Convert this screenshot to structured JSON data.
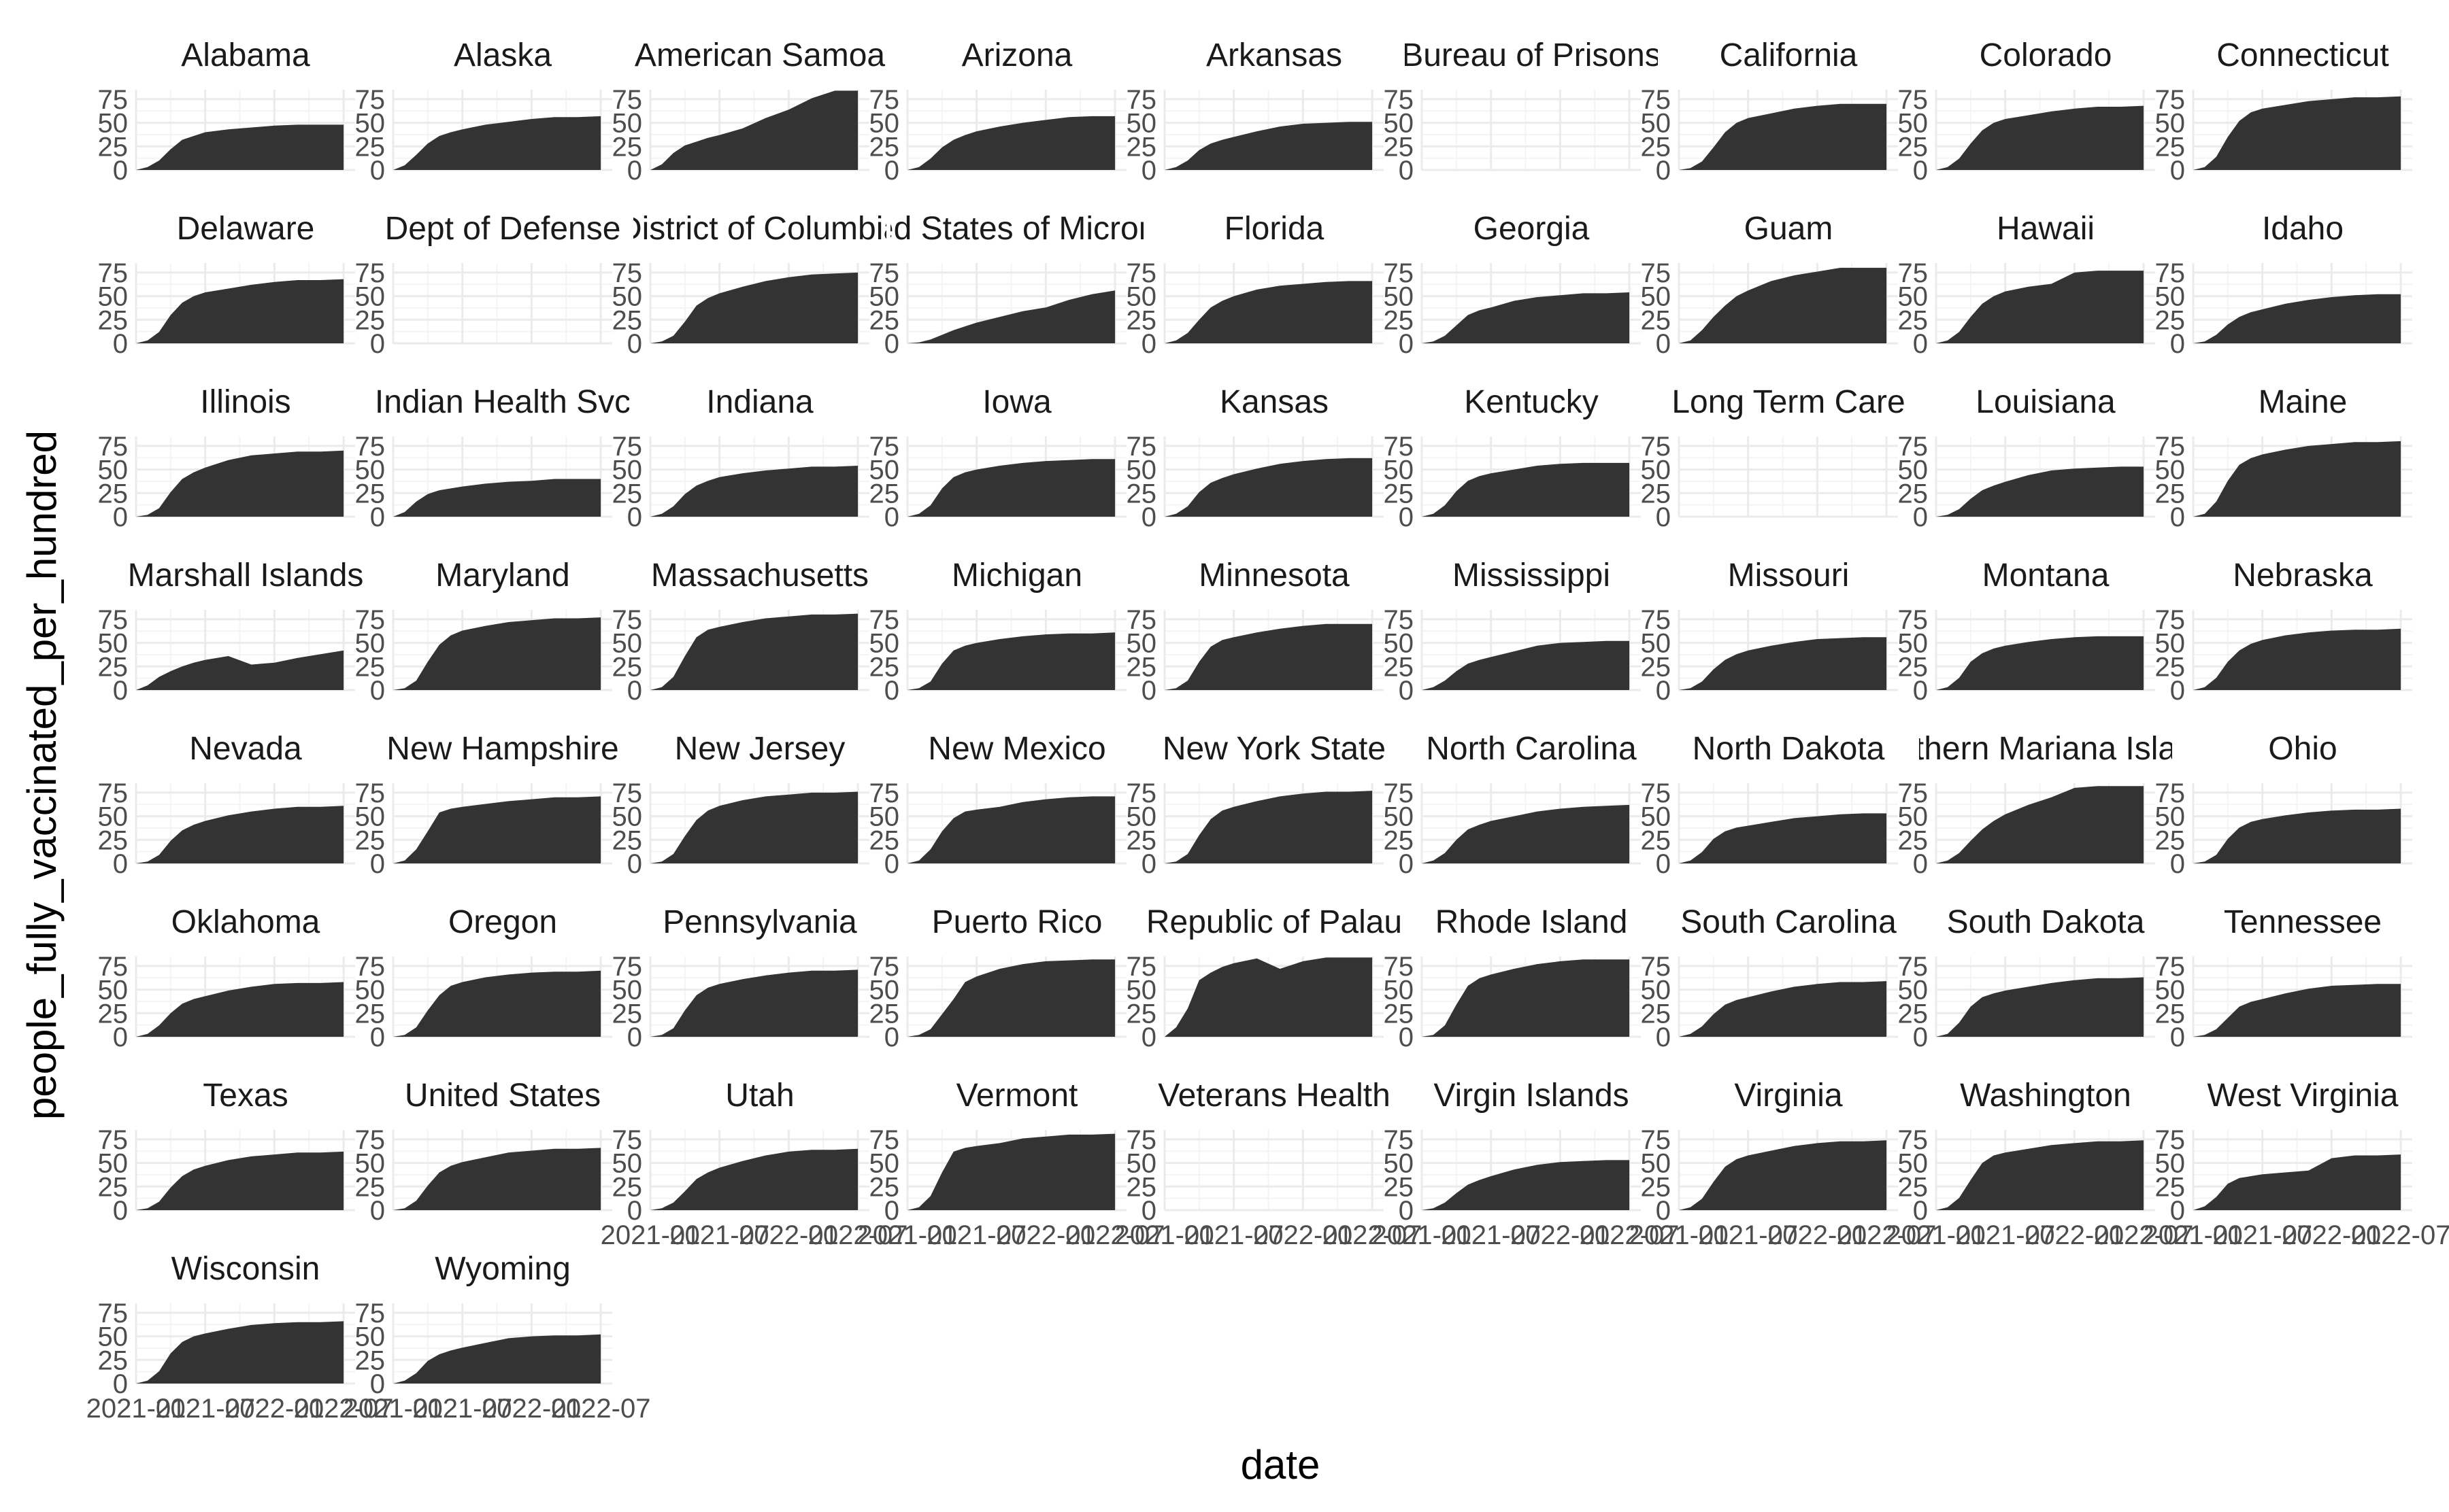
{
  "chart_data": {
    "type": "area",
    "facet_layout": "wrap 9 columns",
    "xlabel": "date",
    "ylabel": "people_fully_vaccinated_per_hundred",
    "ylim": [
      0,
      85
    ],
    "y_ticks": [
      0,
      25,
      50,
      75
    ],
    "x_range": [
      "2021-01",
      "2022-08"
    ],
    "x_ticks": [
      "2021-01",
      "2021-07",
      "2022-01",
      "2022-07"
    ],
    "grid": true,
    "fill_color": "#333333",
    "x_months": [
      0,
      1,
      2,
      3,
      4,
      5,
      6,
      8,
      10,
      12,
      14,
      16,
      18
    ],
    "facets": [
      {
        "name": "Alabama",
        "values": [
          0,
          3,
          10,
          22,
          32,
          36,
          40,
          43,
          45,
          47,
          48,
          48,
          48
        ]
      },
      {
        "name": "Alaska",
        "values": [
          0,
          5,
          16,
          28,
          36,
          40,
          43,
          48,
          51,
          54,
          56,
          56,
          57
        ]
      },
      {
        "name": "American Samoa",
        "values": [
          0,
          6,
          18,
          26,
          30,
          34,
          37,
          44,
          55,
          64,
          76,
          84,
          84
        ]
      },
      {
        "name": "Arizona",
        "values": [
          0,
          3,
          12,
          24,
          32,
          37,
          41,
          46,
          50,
          53,
          56,
          57,
          57
        ]
      },
      {
        "name": "Arkansas",
        "values": [
          0,
          3,
          10,
          21,
          28,
          32,
          35,
          41,
          46,
          49,
          50,
          51,
          51
        ]
      },
      {
        "name": "Bureau of Prisons",
        "values": []
      },
      {
        "name": "California",
        "values": [
          0,
          2,
          9,
          24,
          40,
          50,
          55,
          60,
          65,
          68,
          70,
          70,
          70
        ]
      },
      {
        "name": "Colorado",
        "values": [
          0,
          3,
          12,
          28,
          42,
          50,
          54,
          58,
          62,
          65,
          67,
          67,
          68
        ]
      },
      {
        "name": "Connecticut",
        "values": [
          0,
          3,
          14,
          35,
          52,
          61,
          65,
          69,
          73,
          75,
          77,
          77,
          78
        ]
      },
      {
        "name": "Delaware",
        "values": [
          0,
          3,
          12,
          30,
          43,
          50,
          54,
          58,
          62,
          65,
          67,
          67,
          68
        ]
      },
      {
        "name": "Dept of Defense",
        "values": []
      },
      {
        "name": "District of Columbia",
        "values": [
          0,
          2,
          8,
          23,
          40,
          48,
          53,
          60,
          66,
          70,
          73,
          74,
          75
        ]
      },
      {
        "name": "United States of Micronesia",
        "values": [
          0,
          1,
          4,
          9,
          14,
          18,
          22,
          28,
          34,
          38,
          46,
          52,
          56
        ]
      },
      {
        "name": "Florida",
        "values": [
          0,
          3,
          11,
          25,
          38,
          45,
          50,
          57,
          61,
          63,
          65,
          66,
          66
        ]
      },
      {
        "name": "Georgia",
        "values": [
          0,
          2,
          8,
          19,
          30,
          35,
          38,
          45,
          49,
          51,
          53,
          53,
          54
        ]
      },
      {
        "name": "Guam",
        "values": [
          0,
          3,
          14,
          28,
          40,
          50,
          56,
          66,
          72,
          76,
          80,
          80,
          80
        ]
      },
      {
        "name": "Hawaii",
        "values": [
          0,
          3,
          12,
          28,
          42,
          50,
          55,
          60,
          63,
          75,
          77,
          77,
          77
        ]
      },
      {
        "name": "Idaho",
        "values": [
          0,
          2,
          9,
          20,
          28,
          33,
          36,
          42,
          46,
          49,
          51,
          52,
          52
        ]
      },
      {
        "name": "Illinois",
        "values": [
          0,
          2,
          9,
          26,
          40,
          47,
          52,
          60,
          65,
          67,
          69,
          69,
          70
        ]
      },
      {
        "name": "Indian Health Svc",
        "values": [
          0,
          5,
          16,
          24,
          28,
          30,
          32,
          35,
          37,
          38,
          40,
          40,
          40
        ]
      },
      {
        "name": "Indiana",
        "values": [
          0,
          3,
          11,
          24,
          33,
          38,
          42,
          46,
          49,
          51,
          53,
          53,
          54
        ]
      },
      {
        "name": "Iowa",
        "values": [
          0,
          3,
          12,
          30,
          42,
          47,
          50,
          54,
          57,
          59,
          60,
          61,
          61
        ]
      },
      {
        "name": "Kansas",
        "values": [
          0,
          3,
          11,
          26,
          36,
          41,
          45,
          51,
          56,
          59,
          61,
          62,
          62
        ]
      },
      {
        "name": "Kentucky",
        "values": [
          0,
          3,
          12,
          27,
          38,
          43,
          46,
          50,
          54,
          56,
          57,
          57,
          57
        ]
      },
      {
        "name": "Long Term Care",
        "values": []
      },
      {
        "name": "Louisiana",
        "values": [
          0,
          2,
          8,
          19,
          28,
          33,
          37,
          44,
          49,
          51,
          52,
          53,
          53
        ]
      },
      {
        "name": "Maine",
        "values": [
          0,
          3,
          16,
          38,
          55,
          62,
          66,
          71,
          75,
          77,
          79,
          79,
          80
        ]
      },
      {
        "name": "Marshall Islands",
        "values": [
          0,
          5,
          14,
          20,
          25,
          29,
          32,
          36,
          27,
          29,
          34,
          38,
          42
        ]
      },
      {
        "name": "Maryland",
        "values": [
          0,
          2,
          10,
          30,
          48,
          58,
          63,
          68,
          72,
          74,
          76,
          76,
          77
        ]
      },
      {
        "name": "Massachusetts",
        "values": [
          0,
          3,
          14,
          36,
          56,
          64,
          67,
          72,
          76,
          78,
          80,
          80,
          81
        ]
      },
      {
        "name": "Michigan",
        "values": [
          0,
          2,
          9,
          28,
          42,
          47,
          50,
          54,
          57,
          59,
          60,
          60,
          61
        ]
      },
      {
        "name": "Minnesota",
        "values": [
          0,
          2,
          10,
          30,
          46,
          53,
          56,
          61,
          65,
          68,
          70,
          70,
          70
        ]
      },
      {
        "name": "Mississippi",
        "values": [
          0,
          3,
          10,
          20,
          28,
          32,
          35,
          41,
          47,
          50,
          51,
          52,
          52
        ]
      },
      {
        "name": "Missouri",
        "values": [
          0,
          2,
          9,
          22,
          32,
          38,
          42,
          47,
          51,
          54,
          55,
          56,
          56
        ]
      },
      {
        "name": "Montana",
        "values": [
          0,
          3,
          13,
          30,
          39,
          44,
          47,
          51,
          54,
          56,
          57,
          57,
          57
        ]
      },
      {
        "name": "Nebraska",
        "values": [
          0,
          3,
          13,
          30,
          42,
          49,
          53,
          58,
          61,
          63,
          64,
          64,
          65
        ]
      },
      {
        "name": "Nevada",
        "values": [
          0,
          2,
          9,
          24,
          35,
          41,
          45,
          51,
          55,
          58,
          60,
          60,
          61
        ]
      },
      {
        "name": "New Hampshire",
        "values": [
          0,
          3,
          15,
          34,
          54,
          58,
          60,
          63,
          66,
          68,
          70,
          70,
          71
        ]
      },
      {
        "name": "New Jersey",
        "values": [
          0,
          2,
          10,
          29,
          46,
          56,
          61,
          67,
          71,
          73,
          75,
          75,
          76
        ]
      },
      {
        "name": "New Mexico",
        "values": [
          0,
          3,
          15,
          34,
          48,
          55,
          57,
          60,
          65,
          68,
          70,
          71,
          71
        ]
      },
      {
        "name": "New York State",
        "values": [
          0,
          2,
          10,
          30,
          47,
          56,
          60,
          66,
          71,
          74,
          76,
          76,
          77
        ]
      },
      {
        "name": "North Carolina",
        "values": [
          0,
          3,
          11,
          25,
          36,
          41,
          45,
          50,
          55,
          58,
          60,
          61,
          62
        ]
      },
      {
        "name": "North Dakota",
        "values": [
          0,
          3,
          12,
          26,
          34,
          38,
          40,
          44,
          48,
          50,
          52,
          53,
          53
        ]
      },
      {
        "name": "Northern Mariana Islands",
        "values": [
          0,
          3,
          11,
          24,
          36,
          45,
          52,
          62,
          70,
          80,
          82,
          82,
          82
        ]
      },
      {
        "name": "Ohio",
        "values": [
          0,
          2,
          9,
          26,
          38,
          44,
          47,
          51,
          54,
          56,
          57,
          57,
          58
        ]
      },
      {
        "name": "Oklahoma",
        "values": [
          0,
          3,
          12,
          25,
          35,
          40,
          43,
          49,
          53,
          56,
          57,
          57,
          58
        ]
      },
      {
        "name": "Oregon",
        "values": [
          0,
          2,
          10,
          28,
          44,
          54,
          58,
          63,
          66,
          68,
          69,
          69,
          70
        ]
      },
      {
        "name": "Pennsylvania",
        "values": [
          0,
          2,
          9,
          28,
          44,
          52,
          56,
          61,
          65,
          68,
          70,
          70,
          71
        ]
      },
      {
        "name": "Puerto Rico",
        "values": [
          0,
          2,
          8,
          24,
          40,
          58,
          64,
          72,
          77,
          80,
          81,
          82,
          82
        ]
      },
      {
        "name": "Republic of Palau",
        "values": [
          0,
          10,
          30,
          60,
          68,
          74,
          78,
          83,
          72,
          80,
          84,
          84,
          84
        ]
      },
      {
        "name": "Rhode Island",
        "values": [
          0,
          2,
          12,
          34,
          54,
          62,
          66,
          72,
          77,
          80,
          82,
          82,
          82
        ]
      },
      {
        "name": "South Carolina",
        "values": [
          0,
          3,
          11,
          24,
          34,
          39,
          42,
          48,
          53,
          56,
          58,
          58,
          59
        ]
      },
      {
        "name": "South Dakota",
        "values": [
          0,
          3,
          15,
          32,
          42,
          46,
          49,
          53,
          57,
          60,
          62,
          62,
          63
        ]
      },
      {
        "name": "Tennessee",
        "values": [
          0,
          2,
          8,
          20,
          32,
          37,
          40,
          46,
          51,
          54,
          55,
          56,
          56
        ]
      },
      {
        "name": "Texas",
        "values": [
          0,
          2,
          9,
          24,
          36,
          43,
          47,
          53,
          57,
          59,
          61,
          61,
          62
        ]
      },
      {
        "name": "United States",
        "values": [
          0,
          2,
          10,
          26,
          40,
          47,
          51,
          56,
          61,
          63,
          65,
          65,
          66
        ]
      },
      {
        "name": "Utah",
        "values": [
          0,
          2,
          8,
          20,
          33,
          40,
          45,
          52,
          58,
          62,
          64,
          64,
          65
        ]
      },
      {
        "name": "Vermont",
        "values": [
          0,
          3,
          15,
          40,
          62,
          66,
          68,
          71,
          76,
          78,
          80,
          80,
          81
        ]
      },
      {
        "name": "Veterans Health",
        "values": []
      },
      {
        "name": "Virgin Islands",
        "values": [
          0,
          2,
          8,
          18,
          27,
          32,
          36,
          43,
          48,
          51,
          52,
          53,
          53
        ]
      },
      {
        "name": "Virginia",
        "values": [
          0,
          3,
          12,
          30,
          46,
          54,
          58,
          63,
          68,
          71,
          73,
          73,
          74
        ]
      },
      {
        "name": "Washington",
        "values": [
          0,
          3,
          13,
          32,
          50,
          58,
          61,
          65,
          69,
          71,
          73,
          73,
          74
        ]
      },
      {
        "name": "West Virginia",
        "values": [
          0,
          4,
          14,
          28,
          34,
          36,
          38,
          40,
          42,
          55,
          58,
          58,
          59
        ]
      },
      {
        "name": "Wisconsin",
        "values": [
          0,
          3,
          13,
          32,
          44,
          50,
          53,
          58,
          62,
          64,
          65,
          65,
          66
        ]
      },
      {
        "name": "Wyoming",
        "values": [
          0,
          3,
          11,
          24,
          31,
          35,
          38,
          43,
          48,
          50,
          51,
          51,
          52
        ]
      }
    ]
  }
}
